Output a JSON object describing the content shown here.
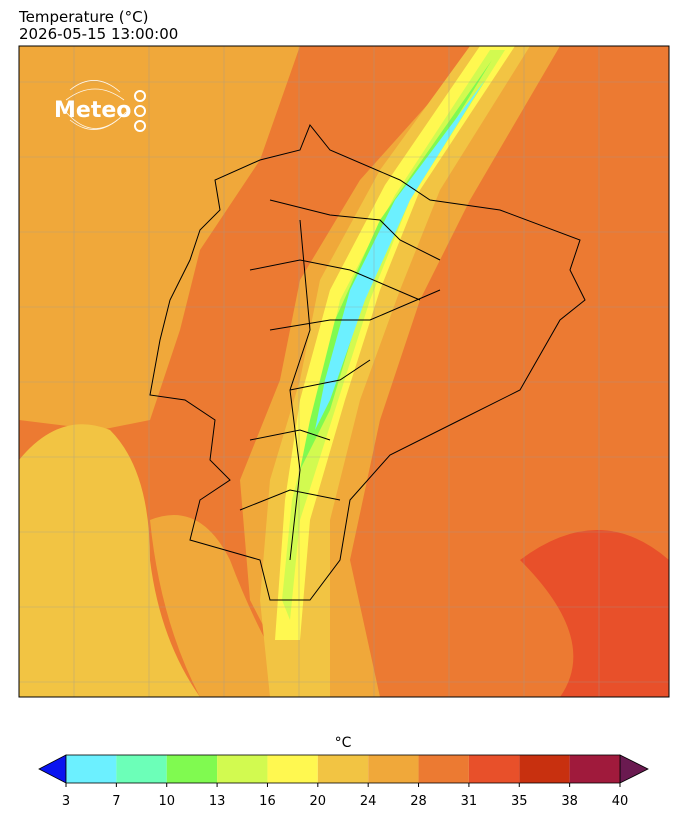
{
  "header": {
    "title": "Temperature (°C)",
    "timestamp": "2026-05-15 13:00:00"
  },
  "logo": {
    "text": "Meteo"
  },
  "colorbar": {
    "label": "°C",
    "ticks": [
      3,
      7,
      10,
      13,
      16,
      20,
      24,
      28,
      31,
      35,
      38,
      40
    ],
    "colors": [
      "#6cf0ff",
      "#6cffb8",
      "#80fa50",
      "#d2fa50",
      "#fff850",
      "#f2c443",
      "#f0a83a",
      "#ec7a32",
      "#e8502a",
      "#c8300f",
      "#a01a3c"
    ],
    "under_color": "#0a14f0",
    "over_color": "#6a1a50"
  }
}
